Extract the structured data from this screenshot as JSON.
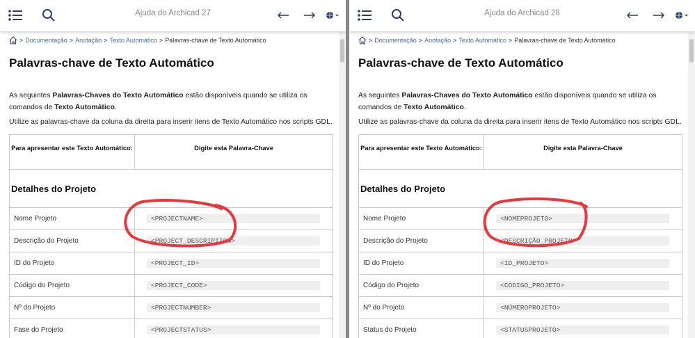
{
  "annotation_color": "#e8383d",
  "panels": [
    {
      "title": "Ajuda do Archicad 27",
      "breadcrumb": [
        "Documentação",
        "Anotação",
        "Texto Automático",
        "Palavras-chave de Texto Automático"
      ],
      "heading": "Palavras-chave de Texto Automático",
      "intro": {
        "a": "As seguintes ",
        "b": "Palavras-Chaves do Texto Automático",
        "c": " estão disponíveis quando se utiliza os comandos de ",
        "d": "Texto Automático",
        "e": "."
      },
      "intro2": "Utilize as palavras-chave da coluna da direita para inserir itens de Texto Automático nos scripts GDL.",
      "col1": "Para apresentar este Texto Automático:",
      "col2": "Digite esta Palavra-Chave",
      "section": "Detalhes do Projeto",
      "rows": [
        {
          "label": "Nome Projeto",
          "keyword": "<PROJECTNAME>"
        },
        {
          "label": "Descrição do Projeto",
          "keyword": "<PROJECT_DESCRIPTION>"
        },
        {
          "label": "ID do Projeto",
          "keyword": "<PROJECT_ID>"
        },
        {
          "label": "Código do Projeto",
          "keyword": "<PROJECT_CODE>"
        },
        {
          "label": "Nº do Projeto",
          "keyword": "<PROJECTNUMBER>"
        },
        {
          "label": "Fase do Projeto",
          "keyword": "<PROJECTSTATUS>"
        }
      ]
    },
    {
      "title": "Ajuda do Archicad 28",
      "breadcrumb": [
        "Documentação",
        "Anotação",
        "Texto Automático",
        "Palavras-chave de Texto Automático"
      ],
      "heading": "Palavras-chave de Texto Automático",
      "intro": {
        "a": "As seguintes ",
        "b": "Palavras-Chaves do Texto Automático",
        "c": " estão disponíveis quando se utiliza os comandos de ",
        "d": "Texto Automático",
        "e": "."
      },
      "intro2": "Utilize as palavras-chave da coluna da direita para inserir itens de Texto Automático nos scripts GDL.",
      "col1": "Para apresentar este Texto Automático:",
      "col2": "Digite esta Palavra-Chave",
      "section": "Detalhes do Projeto",
      "rows": [
        {
          "label": "Nome Projeto",
          "keyword": "<NOMEPROJETO>"
        },
        {
          "label": "Descrição do Projeto",
          "keyword": "<DESCRIÇÃO_PROJETO>"
        },
        {
          "label": "ID do Projeto",
          "keyword": "<ID_PROJETO>"
        },
        {
          "label": "Código do Projeto",
          "keyword": "<CÓDIGO_PROJETO>"
        },
        {
          "label": "Nº do Projeto",
          "keyword": "<NÚMEROPROJETO>"
        },
        {
          "label": "Status do Projeto",
          "keyword": "<STATUSPROJETO>"
        }
      ]
    }
  ]
}
